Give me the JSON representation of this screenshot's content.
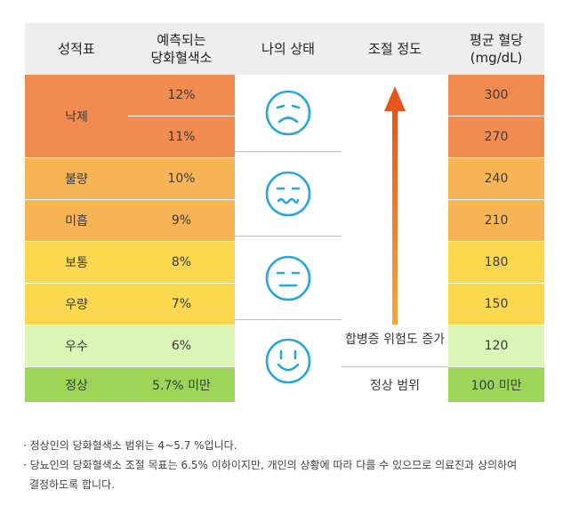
{
  "headers": {
    "col1": "성적표",
    "col2_line1": "예측되는",
    "col2_line2": "당화혈색소",
    "col3": "나의 상태",
    "col4": "조절 정도",
    "col5_line1": "평균 혈당",
    "col5_line2": "(mg/dL)"
  },
  "rows": [
    {
      "grade": "낙제",
      "a1c": "12%",
      "glucose": "300"
    },
    {
      "grade": "",
      "a1c": "11%",
      "glucose": "270"
    },
    {
      "grade": "불량",
      "a1c": "10%",
      "glucose": "240"
    },
    {
      "grade": "미흡",
      "a1c": "9%",
      "glucose": "210"
    },
    {
      "grade": "보통",
      "a1c": "8%",
      "glucose": "180"
    },
    {
      "grade": "우량",
      "a1c": "7%",
      "glucose": "150"
    },
    {
      "grade": "우수",
      "a1c": "6%",
      "glucose": "120"
    },
    {
      "grade": "정상",
      "a1c": "5.7% 미만",
      "glucose": "100 미만"
    }
  ],
  "faces": [
    "sad-face-icon",
    "wavy-mouth-face-icon",
    "neutral-face-icon",
    "smile-face-icon"
  ],
  "control": {
    "arrow_label": "합병증 위험도 증가",
    "normal_label": "정상 범위"
  },
  "notes": {
    "line1": "· 정상인의 당화혈색소 범위는 4~5.7 %입니다.",
    "line2": "· 당뇨인의 당화혈색소 조절 목표는 6.5% 이하이지만, 개인의 상황에 따라 다를 수 있으므로 의료진과 상의하여",
    "line3": "결정하도록 합니다."
  },
  "colors": {
    "header": "#eeeeee",
    "fail": "#f28b50",
    "poor": "#f8b556",
    "medium": "#fcd84f",
    "excellent": "#dbf5b7",
    "normal": "#9cd558",
    "face_stroke": "#27a5dc",
    "arrow_top": "#e8541c",
    "arrow_bottom": "#f8a73c"
  }
}
